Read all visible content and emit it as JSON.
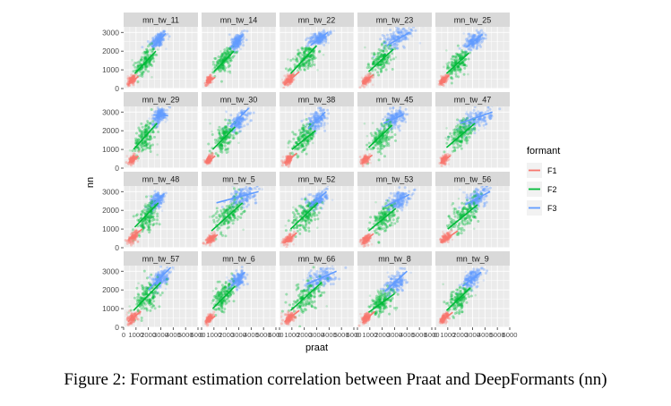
{
  "caption": "Figure 2: Formant estimation correlation between Praat and DeepFormants (nn)",
  "chart_data": {
    "type": "scatter",
    "facet_layout": {
      "rows": 4,
      "cols": 5
    },
    "xlabel": "praat",
    "ylabel": "nn",
    "xlim": [
      0,
      6000
    ],
    "ylim": [
      0,
      3300
    ],
    "x_ticks": [
      0,
      1000,
      2000,
      3000,
      4000,
      5000,
      6000
    ],
    "x_tick_labels": [
      "0",
      "1000",
      "2000",
      "3000",
      "4000",
      "5000",
      "6000"
    ],
    "y_ticks": [
      0,
      1000,
      2000,
      3000
    ],
    "y_tick_labels": [
      "0",
      "1000",
      "2000",
      "3000"
    ],
    "legend": {
      "title": "formant",
      "position": "right",
      "entries": [
        {
          "name": "F1",
          "color": "#F8766D"
        },
        {
          "name": "F2",
          "color": "#00BA38"
        },
        {
          "name": "F3",
          "color": "#619CFF"
        }
      ]
    },
    "panel_bg": "#EBEBEB",
    "strip_bg": "#D9D9D9",
    "grid": true,
    "panels": [
      {
        "name": "mn_tw_11",
        "F1": {
          "cx": 650,
          "cy": 450,
          "sx": 160,
          "sy": 110,
          "line": [
            [
              350,
              200
            ],
            [
              1200,
              650
            ]
          ]
        },
        "F2": {
          "cx": 1750,
          "cy": 1400,
          "sx": 380,
          "sy": 320,
          "line": [
            [
              900,
              800
            ],
            [
              2600,
              2000
            ]
          ]
        },
        "F3": {
          "cx": 2800,
          "cy": 2600,
          "sx": 320,
          "sy": 200,
          "line": [
            [
              2300,
              2200
            ],
            [
              3400,
              2950
            ]
          ]
        }
      },
      {
        "name": "mn_tw_14",
        "F1": {
          "cx": 600,
          "cy": 450,
          "sx": 130,
          "sy": 90,
          "line": [
            [
              350,
              300
            ],
            [
              1100,
              600
            ]
          ]
        },
        "F2": {
          "cx": 1800,
          "cy": 1500,
          "sx": 350,
          "sy": 270,
          "line": [
            [
              1000,
              900
            ],
            [
              2600,
              2000
            ]
          ]
        },
        "F3": {
          "cx": 2900,
          "cy": 2500,
          "sx": 260,
          "sy": 180,
          "line": [
            [
              2400,
              2200
            ],
            [
              3300,
              2800
            ]
          ]
        }
      },
      {
        "name": "mn_tw_22",
        "F1": {
          "cx": 800,
          "cy": 500,
          "sx": 220,
          "sy": 130,
          "line": [
            [
              400,
              200
            ],
            [
              1600,
              900
            ]
          ]
        },
        "F2": {
          "cx": 2100,
          "cy": 1600,
          "sx": 500,
          "sy": 330,
          "line": [
            [
              900,
              800
            ],
            [
              3000,
              2300
            ]
          ]
        },
        "F3": {
          "cx": 3200,
          "cy": 2700,
          "sx": 420,
          "sy": 180,
          "line": [
            [
              2500,
              2300
            ],
            [
              3900,
              3000
            ]
          ]
        }
      },
      {
        "name": "mn_tw_23",
        "F1": {
          "cx": 750,
          "cy": 450,
          "sx": 180,
          "sy": 110,
          "line": [
            [
              400,
              250
            ],
            [
              1300,
              750
            ]
          ]
        },
        "F2": {
          "cx": 1900,
          "cy": 1550,
          "sx": 450,
          "sy": 320,
          "line": [
            [
              900,
              900
            ],
            [
              2900,
              2100
            ]
          ]
        },
        "F3": {
          "cx": 3300,
          "cy": 2750,
          "sx": 620,
          "sy": 260,
          "line": [
            [
              2400,
              2300
            ],
            [
              4200,
              3000
            ]
          ]
        }
      },
      {
        "name": "mn_tw_25",
        "F1": {
          "cx": 650,
          "cy": 450,
          "sx": 150,
          "sy": 100,
          "line": [
            [
              350,
              250
            ],
            [
              1100,
              700
            ]
          ]
        },
        "F2": {
          "cx": 1800,
          "cy": 1350,
          "sx": 400,
          "sy": 320,
          "line": [
            [
              900,
              800
            ],
            [
              2700,
              1900
            ]
          ]
        },
        "F3": {
          "cx": 3100,
          "cy": 2550,
          "sx": 380,
          "sy": 200,
          "line": [
            [
              2500,
              2200
            ],
            [
              3800,
              2900
            ]
          ]
        }
      },
      {
        "name": "mn_tw_29",
        "F1": {
          "cx": 700,
          "cy": 450,
          "sx": 150,
          "sy": 100,
          "line": [
            [
              400,
              300
            ],
            [
              1200,
              650
            ]
          ]
        },
        "F2": {
          "cx": 1700,
          "cy": 1650,
          "sx": 420,
          "sy": 400,
          "line": [
            [
              800,
              1000
            ],
            [
              2700,
              2400
            ]
          ]
        },
        "F3": {
          "cx": 2900,
          "cy": 2800,
          "sx": 300,
          "sy": 200,
          "line": [
            [
              2400,
              2850
            ],
            [
              3600,
              2800
            ]
          ]
        }
      },
      {
        "name": "mn_tw_30",
        "F1": {
          "cx": 600,
          "cy": 450,
          "sx": 140,
          "sy": 100,
          "line": [
            [
              350,
              250
            ],
            [
              1100,
              650
            ]
          ]
        },
        "F2": {
          "cx": 1800,
          "cy": 1600,
          "sx": 450,
          "sy": 360,
          "line": [
            [
              900,
              1000
            ],
            [
              2700,
              2200
            ]
          ]
        },
        "F3": {
          "cx": 3000,
          "cy": 2500,
          "sx": 400,
          "sy": 230,
          "line": [
            [
              2300,
              2200
            ],
            [
              3800,
              3200
            ]
          ]
        }
      },
      {
        "name": "mn_tw_38",
        "F1": {
          "cx": 700,
          "cy": 450,
          "sx": 170,
          "sy": 110,
          "line": [
            [
              400,
              250
            ],
            [
              1400,
              800
            ]
          ]
        },
        "F2": {
          "cx": 2000,
          "cy": 1550,
          "sx": 480,
          "sy": 330,
          "line": [
            [
              1000,
              1000
            ],
            [
              2900,
              2000
            ]
          ]
        },
        "F3": {
          "cx": 3000,
          "cy": 2550,
          "sx": 400,
          "sy": 230,
          "line": [
            [
              2300,
              2100
            ],
            [
              3700,
              3000
            ]
          ]
        }
      },
      {
        "name": "mn_tw_45",
        "F1": {
          "cx": 650,
          "cy": 450,
          "sx": 160,
          "sy": 100,
          "line": [
            [
              350,
              250
            ],
            [
              1200,
              700
            ]
          ]
        },
        "F2": {
          "cx": 1900,
          "cy": 1650,
          "sx": 450,
          "sy": 360,
          "line": [
            [
              900,
              1100
            ],
            [
              2800,
              2300
            ]
          ]
        },
        "F3": {
          "cx": 3000,
          "cy": 2650,
          "sx": 400,
          "sy": 220,
          "line": [
            [
              2100,
              2400
            ],
            [
              3700,
              2850
            ]
          ]
        }
      },
      {
        "name": "mn_tw_47",
        "F1": {
          "cx": 700,
          "cy": 450,
          "sx": 150,
          "sy": 100,
          "line": [
            [
              400,
              250
            ],
            [
              1200,
              650
            ]
          ]
        },
        "F2": {
          "cx": 2100,
          "cy": 1800,
          "sx": 520,
          "sy": 330,
          "line": [
            [
              900,
              1100
            ],
            [
              3200,
              2400
            ]
          ]
        },
        "F3": {
          "cx": 3300,
          "cy": 2600,
          "sx": 620,
          "sy": 260,
          "line": [
            [
              2000,
              2400
            ],
            [
              4600,
              3000
            ]
          ]
        }
      },
      {
        "name": "mn_tw_48",
        "F1": {
          "cx": 800,
          "cy": 600,
          "sx": 220,
          "sy": 140,
          "line": [
            [
              400,
              450
            ],
            [
              1500,
              1000
            ]
          ]
        },
        "F2": {
          "cx": 1900,
          "cy": 1650,
          "sx": 430,
          "sy": 360,
          "line": [
            [
              900,
              1100
            ],
            [
              2800,
              2400
            ]
          ]
        },
        "F3": {
          "cx": 2700,
          "cy": 2500,
          "sx": 300,
          "sy": 220,
          "line": [
            [
              2200,
              2200
            ],
            [
              3300,
              2900
            ]
          ]
        }
      },
      {
        "name": "mn_tw_5",
        "F1": {
          "cx": 700,
          "cy": 450,
          "sx": 180,
          "sy": 110,
          "line": [
            [
              400,
              250
            ],
            [
              1300,
              700
            ]
          ]
        },
        "F2": {
          "cx": 2200,
          "cy": 1750,
          "sx": 600,
          "sy": 380,
          "line": [
            [
              800,
              900
            ],
            [
              3300,
              2400
            ]
          ]
        },
        "F3": {
          "cx": 3300,
          "cy": 2750,
          "sx": 550,
          "sy": 230,
          "line": [
            [
              1200,
              2400
            ],
            [
              4600,
              3000
            ]
          ]
        }
      },
      {
        "name": "mn_tw_52",
        "F1": {
          "cx": 700,
          "cy": 450,
          "sx": 180,
          "sy": 110,
          "line": [
            [
              400,
              250
            ],
            [
              1400,
              800
            ]
          ]
        },
        "F2": {
          "cx": 2100,
          "cy": 1700,
          "sx": 550,
          "sy": 400,
          "line": [
            [
              900,
              1000
            ],
            [
              3100,
              2400
            ]
          ]
        },
        "F3": {
          "cx": 3100,
          "cy": 2550,
          "sx": 400,
          "sy": 230,
          "line": [
            [
              2400,
              2200
            ],
            [
              3800,
              3000
            ]
          ]
        }
      },
      {
        "name": "mn_tw_53",
        "F1": {
          "cx": 700,
          "cy": 450,
          "sx": 170,
          "sy": 110,
          "line": [
            [
              400,
              250
            ],
            [
              1300,
              750
            ]
          ]
        },
        "F2": {
          "cx": 2100,
          "cy": 1550,
          "sx": 520,
          "sy": 360,
          "line": [
            [
              900,
              900
            ],
            [
              3100,
              2100
            ]
          ]
        },
        "F3": {
          "cx": 3300,
          "cy": 2550,
          "sx": 450,
          "sy": 220,
          "line": [
            [
              2200,
              2200
            ],
            [
              4200,
              2850
            ]
          ]
        }
      },
      {
        "name": "mn_tw_56",
        "F1": {
          "cx": 900,
          "cy": 550,
          "sx": 230,
          "sy": 130,
          "line": [
            [
              500,
              300
            ],
            [
              1800,
              900
            ]
          ]
        },
        "F2": {
          "cx": 2300,
          "cy": 1700,
          "sx": 600,
          "sy": 400,
          "line": [
            [
              1000,
              1000
            ],
            [
              3400,
              2300
            ]
          ]
        },
        "F3": {
          "cx": 3400,
          "cy": 2650,
          "sx": 500,
          "sy": 260,
          "line": [
            [
              2400,
              2300
            ],
            [
              4400,
              3000
            ]
          ]
        }
      },
      {
        "name": "mn_tw_57",
        "F1": {
          "cx": 700,
          "cy": 500,
          "sx": 180,
          "sy": 140,
          "line": [
            [
              350,
              300
            ],
            [
              1400,
              850
            ]
          ]
        },
        "F2": {
          "cx": 1900,
          "cy": 1600,
          "sx": 500,
          "sy": 400,
          "line": [
            [
              800,
              900
            ],
            [
              3000,
              2400
            ]
          ]
        },
        "F3": {
          "cx": 3000,
          "cy": 2600,
          "sx": 380,
          "sy": 230,
          "line": [
            [
              2000,
              2000
            ],
            [
              3800,
              3200
            ]
          ]
        }
      },
      {
        "name": "mn_tw_6",
        "F1": {
          "cx": 600,
          "cy": 450,
          "sx": 140,
          "sy": 100,
          "line": [
            [
              350,
              250
            ],
            [
              1100,
              600
            ]
          ]
        },
        "F2": {
          "cx": 1800,
          "cy": 1600,
          "sx": 400,
          "sy": 340,
          "line": [
            [
              900,
              1000
            ],
            [
              2700,
              2200
            ]
          ]
        },
        "F3": {
          "cx": 2900,
          "cy": 2550,
          "sx": 300,
          "sy": 190,
          "line": [
            [
              2400,
              2200
            ],
            [
              3500,
              2950
            ]
          ]
        }
      },
      {
        "name": "mn_tw_66",
        "F1": {
          "cx": 800,
          "cy": 500,
          "sx": 220,
          "sy": 140,
          "line": [
            [
              400,
              300
            ],
            [
              1600,
              900
            ]
          ]
        },
        "F2": {
          "cx": 2200,
          "cy": 1650,
          "sx": 600,
          "sy": 420,
          "line": [
            [
              900,
              900
            ],
            [
              3400,
              2400
            ]
          ]
        },
        "F3": {
          "cx": 3400,
          "cy": 2650,
          "sx": 600,
          "sy": 260,
          "line": [
            [
              2200,
              2300
            ],
            [
              4600,
              3000
            ]
          ]
        }
      },
      {
        "name": "mn_tw_8",
        "F1": {
          "cx": 700,
          "cy": 500,
          "sx": 180,
          "sy": 120,
          "line": [
            [
              400,
              250
            ],
            [
              1400,
              850
            ]
          ]
        },
        "F2": {
          "cx": 2000,
          "cy": 1350,
          "sx": 480,
          "sy": 300,
          "line": [
            [
              900,
              800
            ],
            [
              3000,
              1800
            ]
          ]
        },
        "F3": {
          "cx": 3100,
          "cy": 2350,
          "sx": 450,
          "sy": 250,
          "line": [
            [
              2200,
              1900
            ],
            [
              4000,
              3000
            ]
          ]
        }
      },
      {
        "name": "mn_tw_9",
        "F1": {
          "cx": 700,
          "cy": 500,
          "sx": 170,
          "sy": 110,
          "line": [
            [
              400,
              300
            ],
            [
              1400,
              800
            ]
          ]
        },
        "F2": {
          "cx": 1900,
          "cy": 1500,
          "sx": 450,
          "sy": 330,
          "line": [
            [
              900,
              900
            ],
            [
              2800,
              2100
            ]
          ]
        },
        "F3": {
          "cx": 3000,
          "cy": 2600,
          "sx": 380,
          "sy": 220,
          "line": [
            [
              2200,
              2200
            ],
            [
              3700,
              2950
            ]
          ]
        }
      }
    ]
  }
}
